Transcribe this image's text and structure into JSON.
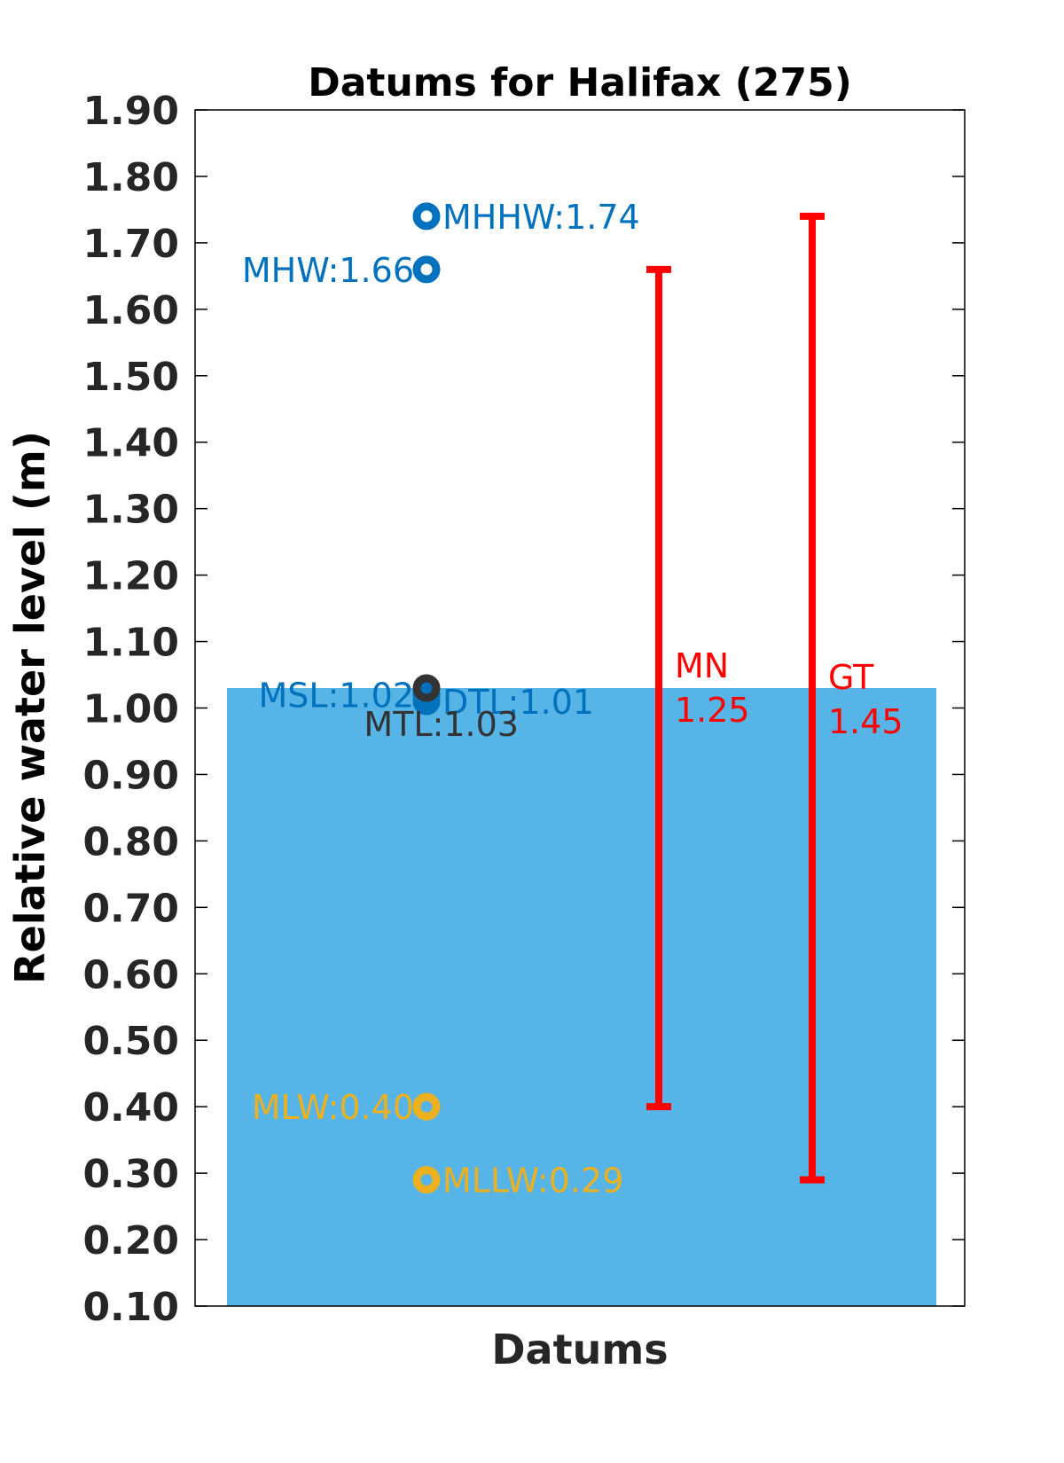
{
  "chart_data": {
    "type": "bar",
    "title": "Datums for Halifax (275)",
    "xlabel": "Datums",
    "ylabel": "Relative water level (m)",
    "ylim": [
      0.1,
      1.9
    ],
    "yticks": [
      "0.10",
      "0.20",
      "0.30",
      "0.40",
      "0.50",
      "0.60",
      "0.70",
      "0.80",
      "0.90",
      "1.00",
      "1.10",
      "1.20",
      "1.30",
      "1.40",
      "1.50",
      "1.60",
      "1.70",
      "1.80",
      "1.90"
    ],
    "grid": false,
    "bar": {
      "value": 1.03,
      "color": "#56b4e6"
    },
    "datums": [
      {
        "label": "MHHW:1.74",
        "value": 1.74,
        "color": "#0072bd",
        "side": "right"
      },
      {
        "label": "MHW:1.66",
        "value": 1.66,
        "color": "#0072bd",
        "side": "left"
      },
      {
        "label": "MSL:1.02",
        "value": 1.02,
        "color": "#0072bd",
        "side": "left"
      },
      {
        "label": "DTL:1.01",
        "value": 1.01,
        "color": "#0072bd",
        "side": "right"
      },
      {
        "label": "MTL:1.03",
        "value": 1.03,
        "color": "#333333",
        "side": "below"
      },
      {
        "label": "MLW:0.40",
        "value": 0.4,
        "color": "#edb120",
        "side": "left"
      },
      {
        "label": "MLLW:0.29",
        "value": 0.29,
        "color": "#edb120",
        "side": "right"
      }
    ],
    "ranges": [
      {
        "name": "MN",
        "value_label": "1.25",
        "low": 0.4,
        "high": 1.66,
        "color": "#ff0000"
      },
      {
        "name": "GT",
        "value_label": "1.45",
        "low": 0.29,
        "high": 1.74,
        "color": "#ff0000"
      }
    ]
  }
}
